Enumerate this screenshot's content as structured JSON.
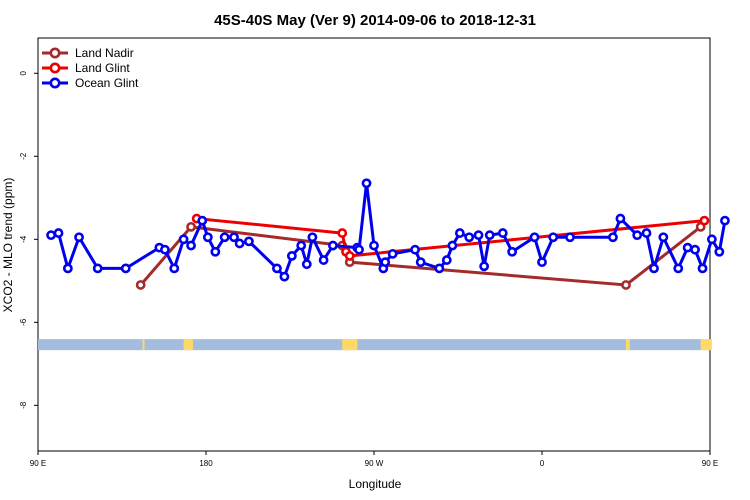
{
  "chart_data": {
    "type": "line",
    "title": "45S-40S May (Ver 9)   2014-09-06 to 2018-12-31",
    "xlabel": "Longitude",
    "ylabel": "XCO2 - MLO trend (ppm)",
    "xlim": [
      90,
      450
    ],
    "ylim": [
      -9.1,
      0.85
    ],
    "x_ticks": [
      {
        "value": 90,
        "label": "90 E"
      },
      {
        "value": 180,
        "label": "180"
      },
      {
        "value": 270,
        "label": "90 W"
      },
      {
        "value": 360,
        "label": "0"
      },
      {
        "value": 450,
        "label": "90 E"
      },
      {
        "value": 540,
        "label": "180"
      }
    ],
    "y_ticks": [
      {
        "value": 0,
        "label": "0"
      },
      {
        "value": -2,
        "label": "-2"
      },
      {
        "value": -4,
        "label": "-4"
      },
      {
        "value": -6,
        "label": "-6"
      },
      {
        "value": -8,
        "label": "-8"
      }
    ],
    "grid": false,
    "legend_position": "top-left",
    "series": [
      {
        "name": "Land Nadir",
        "color": "#a52a2a",
        "points": [
          [
            145,
            -5.1
          ],
          [
            172,
            -3.7
          ],
          [
            253,
            -4.15
          ],
          [
            257,
            -4.55
          ],
          [
            405,
            -5.1
          ],
          [
            445,
            -3.7
          ]
        ]
      },
      {
        "name": "Land Glint",
        "color": "#ee0000",
        "points": [
          [
            175,
            -3.5
          ],
          [
            253,
            -3.85
          ],
          [
            255,
            -4.3
          ],
          [
            257,
            -4.4
          ],
          [
            447,
            -3.55
          ]
        ]
      },
      {
        "name": "Ocean Glint",
        "color": "#0000ee",
        "points": [
          [
            97,
            -3.9
          ],
          [
            101,
            -3.85
          ],
          [
            106,
            -4.7
          ],
          [
            112,
            -3.95
          ],
          [
            122,
            -4.7
          ],
          [
            137,
            -4.7
          ],
          [
            155,
            -4.2
          ],
          [
            158,
            -4.25
          ],
          [
            163,
            -4.7
          ],
          [
            168,
            -4.0
          ],
          [
            172,
            -4.15
          ],
          [
            178,
            -3.55
          ],
          [
            181,
            -3.95
          ],
          [
            185,
            -4.3
          ],
          [
            190,
            -3.95
          ],
          [
            195,
            -3.95
          ],
          [
            198,
            -4.1
          ],
          [
            203,
            -4.05
          ],
          [
            218,
            -4.7
          ],
          [
            222,
            -4.9
          ],
          [
            226,
            -4.4
          ],
          [
            231,
            -4.15
          ],
          [
            234,
            -4.6
          ],
          [
            237,
            -3.95
          ],
          [
            243,
            -4.5
          ],
          [
            248,
            -4.15
          ],
          [
            262,
            -4.25
          ],
          [
            276,
            -4.55
          ],
          [
            280,
            -4.35
          ],
          [
            261,
            -4.2
          ],
          [
            266,
            -2.65
          ],
          [
            270,
            -4.15
          ],
          [
            275,
            -4.7
          ],
          [
            292,
            -4.25
          ],
          [
            295,
            -4.55
          ],
          [
            305,
            -4.7
          ],
          [
            309,
            -4.5
          ],
          [
            312,
            -4.15
          ],
          [
            316,
            -3.85
          ],
          [
            321,
            -3.95
          ],
          [
            326,
            -3.9
          ],
          [
            329,
            -4.65
          ],
          [
            332,
            -3.9
          ],
          [
            339,
            -3.85
          ],
          [
            344,
            -4.3
          ],
          [
            356,
            -3.95
          ],
          [
            360,
            -4.55
          ],
          [
            366,
            -3.95
          ],
          [
            375,
            -3.95
          ],
          [
            398,
            -3.95
          ],
          [
            402,
            -3.5
          ],
          [
            411,
            -3.9
          ],
          [
            416,
            -3.85
          ],
          [
            420,
            -4.7
          ],
          [
            425,
            -3.95
          ],
          [
            433,
            -4.7
          ],
          [
            438,
            -4.2
          ],
          [
            442,
            -4.25
          ],
          [
            446,
            -4.7
          ],
          [
            451,
            -4.0
          ],
          [
            455,
            -4.3
          ],
          [
            458,
            -3.55
          ]
        ]
      }
    ],
    "band": {
      "y": -6.55,
      "color": "#a4bcde",
      "highlight_color": "#ffd966",
      "highlights": [
        [
          146,
          147
        ],
        [
          168,
          173
        ],
        [
          253,
          261
        ],
        [
          405,
          407
        ],
        [
          445,
          451
        ]
      ]
    }
  }
}
